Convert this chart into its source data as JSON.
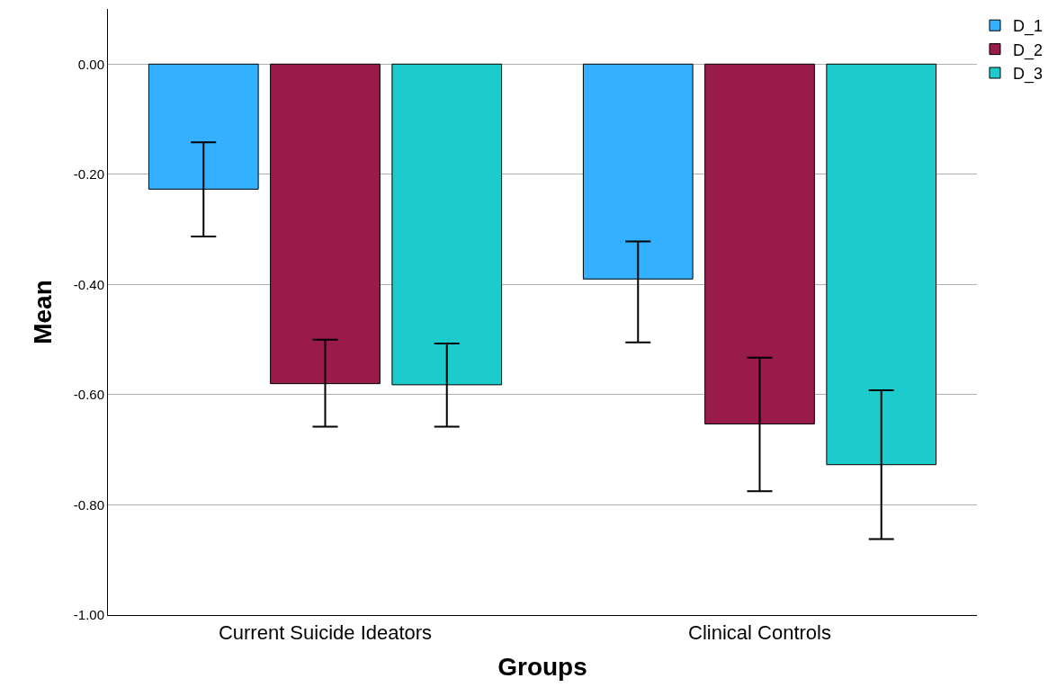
{
  "chart_data": {
    "type": "bar",
    "xlabel": "Groups",
    "ylabel": "Mean",
    "categories": [
      "Current Suicide Ideators",
      "Clinical Controls"
    ],
    "series": [
      {
        "name": "D_1",
        "color": "#33b0ff",
        "values": [
          -0.227,
          -0.39
        ],
        "errors": [
          [
            -0.313,
            -0.142
          ],
          [
            -0.505,
            -0.322
          ]
        ]
      },
      {
        "name": "D_2",
        "color": "#991b4a",
        "values": [
          -0.58,
          -0.653
        ],
        "errors": [
          [
            -0.658,
            -0.5
          ],
          [
            -0.775,
            -0.533
          ]
        ]
      },
      {
        "name": "D_3",
        "color": "#1ccccc",
        "values": [
          -0.582,
          -0.727
        ],
        "errors": [
          [
            -0.658,
            -0.507
          ],
          [
            -0.862,
            -0.592
          ]
        ]
      }
    ],
    "ylim": [
      -1.0,
      0.1
    ],
    "yticks": [
      {
        "value": -1.0,
        "label": "-1.00"
      },
      {
        "value": -0.8,
        "label": "-0.80"
      },
      {
        "value": -0.6,
        "label": "-0.60"
      },
      {
        "value": -0.4,
        "label": "-0.40"
      },
      {
        "value": -0.2,
        "label": "-0.20"
      },
      {
        "value": 0,
        "label": "0.00"
      }
    ],
    "grid": "y",
    "legend": "top right"
  }
}
